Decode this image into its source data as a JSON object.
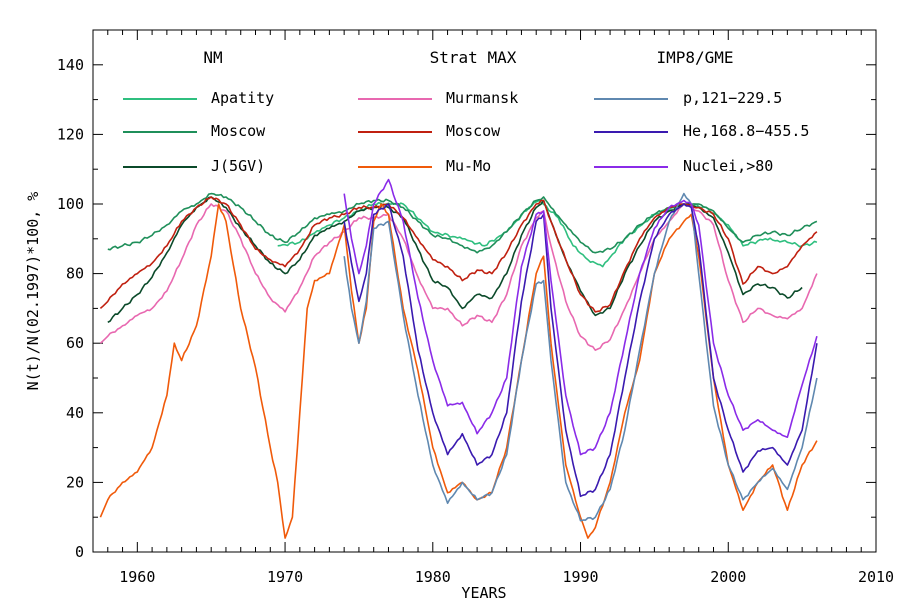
{
  "chart_data": {
    "type": "line",
    "title": "",
    "xlabel": "YEARS",
    "ylabel": "N(t)/N(02.1997)*100, %",
    "xlim": [
      1957,
      2010
    ],
    "ylim": [
      0,
      150
    ],
    "xticks": [
      1960,
      1970,
      1980,
      1990,
      2000,
      2010
    ],
    "yticks": [
      0,
      20,
      40,
      60,
      80,
      100,
      120,
      140
    ],
    "legend_groups": [
      {
        "title": "NM",
        "entries": [
          {
            "name": "Apatity",
            "color": "#2fbf7f"
          },
          {
            "name": "Moscow",
            "color": "#1f8f5a"
          },
          {
            "name": "J(5GV)",
            "color": "#0b4a2a"
          }
        ]
      },
      {
        "title": "Strat MAX",
        "entries": [
          {
            "name": "Murmansk",
            "color": "#e868b0"
          },
          {
            "name": "Moscow",
            "color": "#c02010"
          },
          {
            "name": "Mu-Mo",
            "color": "#f05a0a"
          }
        ]
      },
      {
        "title": "IMP8/GME",
        "entries": [
          {
            "name": "p,121−229.5",
            "color": "#5f88b0"
          },
          {
            "name": "He,168.8−455.5",
            "color": "#3a1ab0"
          },
          {
            "name": "Nuclei,>80",
            "color": "#8a2be8"
          }
        ]
      }
    ],
    "series": [
      {
        "name": "Apatity",
        "color": "#2fbf7f",
        "x": [
          1969.5,
          1971,
          1972.5,
          1974,
          1976,
          1978,
          1980,
          1982,
          1983.5,
          1985,
          1986.5,
          1987.2,
          1988.5,
          1989.5,
          1990.5,
          1991.5,
          1993,
          1995,
          1997,
          1998.5,
          2000,
          2001,
          2002.5,
          2004,
          2005,
          2006
        ],
        "y": [
          88,
          89,
          93,
          96,
          100,
          100,
          92,
          90,
          88,
          92,
          99,
          101,
          96,
          88,
          84,
          82,
          90,
          97,
          100,
          99,
          94,
          88,
          90,
          89,
          88,
          89
        ]
      },
      {
        "name": "Moscow (NM)",
        "color": "#1f8f5a",
        "x": [
          1958,
          1959,
          1960,
          1961,
          1962,
          1963,
          1964,
          1965,
          1966,
          1967,
          1968,
          1969,
          1970,
          1971,
          1972,
          1973,
          1974,
          1975,
          1976,
          1977,
          1978,
          1979,
          1980,
          1981,
          1982,
          1983,
          1984,
          1985,
          1986,
          1987,
          1987.5,
          1988,
          1989,
          1990,
          1991,
          1992,
          1993,
          1994,
          1995,
          1996,
          1997,
          1998,
          1999,
          2000,
          2001,
          2002,
          2003,
          2004,
          2005,
          2006
        ],
        "y": [
          87,
          88,
          89,
          91,
          94,
          98,
          100,
          103,
          102,
          99,
          95,
          91,
          89,
          92,
          96,
          97,
          98,
          100,
          101,
          101,
          99,
          95,
          91,
          90,
          88,
          86,
          88,
          92,
          97,
          101,
          102,
          99,
          94,
          89,
          86,
          87,
          90,
          94,
          97,
          99,
          100,
          100,
          98,
          93,
          89,
          91,
          92,
          91,
          93,
          95
        ]
      },
      {
        "name": "J(5GV)",
        "color": "#0b4a2a",
        "x": [
          1958,
          1959,
          1960,
          1961,
          1962,
          1963,
          1964,
          1965,
          1966,
          1967,
          1968,
          1969,
          1970,
          1971,
          1972,
          1973,
          1974,
          1975,
          1976,
          1977,
          1978,
          1979,
          1980,
          1981,
          1982,
          1983,
          1984,
          1985,
          1986,
          1987,
          1987.5,
          1988,
          1989,
          1990,
          1991,
          1992,
          1993,
          1994,
          1995,
          1996,
          1997,
          1998,
          1999,
          2000,
          2001,
          2002,
          2003,
          2004,
          2005
        ],
        "y": [
          66,
          70,
          74,
          79,
          86,
          94,
          99,
          102,
          99,
          93,
          88,
          83,
          80,
          84,
          91,
          93,
          95,
          98,
          99,
          99,
          96,
          87,
          78,
          76,
          70,
          74,
          73,
          80,
          91,
          99,
          101,
          95,
          84,
          75,
          68,
          70,
          80,
          88,
          95,
          98,
          100,
          99,
          96,
          86,
          74,
          77,
          76,
          73,
          76
        ]
      },
      {
        "name": "Murmansk",
        "color": "#e868b0",
        "x": [
          1957.5,
          1958,
          1959,
          1960,
          1961,
          1962,
          1963,
          1964,
          1965,
          1966,
          1967,
          1968,
          1969,
          1970,
          1971,
          1972,
          1973,
          1974,
          1975,
          1976,
          1977,
          1978,
          1979,
          1980,
          1981,
          1982,
          1983,
          1984,
          1985,
          1986,
          1987,
          1987.5,
          1988,
          1989,
          1990,
          1991,
          1992,
          1993,
          1994,
          1995,
          1996,
          1997,
          1998,
          1999,
          2000,
          2001,
          2002,
          2003,
          2004,
          2005,
          2006
        ],
        "y": [
          60,
          62,
          65,
          68,
          70,
          75,
          84,
          94,
          100,
          98,
          90,
          80,
          73,
          69,
          76,
          85,
          89,
          92,
          96,
          96,
          97,
          90,
          79,
          70,
          70,
          65,
          68,
          66,
          74,
          88,
          96,
          98,
          88,
          72,
          62,
          58,
          61,
          70,
          80,
          90,
          95,
          100,
          98,
          94,
          78,
          66,
          70,
          68,
          67,
          70,
          80
        ]
      },
      {
        "name": "Moscow (Strat)",
        "color": "#c02010",
        "x": [
          1957.5,
          1958,
          1959,
          1960,
          1961,
          1962,
          1963,
          1964,
          1965,
          1966,
          1967,
          1968,
          1969,
          1970,
          1971,
          1972,
          1973,
          1974,
          1975,
          1976,
          1977,
          1978,
          1979,
          1980,
          1981,
          1982,
          1983,
          1984,
          1985,
          1986,
          1987,
          1987.5,
          1988,
          1989,
          1990,
          1991,
          1992,
          1993,
          1994,
          1995,
          1996,
          1997,
          1998,
          1999,
          2000,
          2001,
          2002,
          2003,
          2004,
          2005,
          2006
        ],
        "y": [
          70,
          72,
          77,
          80,
          83,
          88,
          95,
          99,
          102,
          100,
          94,
          87,
          84,
          82,
          87,
          94,
          96,
          97,
          99,
          99,
          100,
          96,
          90,
          84,
          82,
          78,
          81,
          80,
          86,
          94,
          100,
          101,
          95,
          84,
          74,
          69,
          71,
          81,
          90,
          96,
          99,
          100,
          99,
          97,
          90,
          77,
          82,
          80,
          82,
          88,
          92
        ]
      },
      {
        "name": "Mu-Mo",
        "color": "#f05a0a",
        "x": [
          1957.5,
          1958,
          1959,
          1960,
          1961,
          1962,
          1962.5,
          1963,
          1964,
          1965,
          1965.5,
          1966,
          1967,
          1968,
          1969,
          1969.5,
          1970,
          1970.5,
          1971,
          1971.5,
          1972,
          1973,
          1974,
          1974.5,
          1975,
          1975.5,
          1976,
          1976.5,
          1977,
          1978,
          1979,
          1980,
          1981,
          1982,
          1983,
          1984,
          1985,
          1986,
          1987,
          1987.5,
          1988,
          1989,
          1990,
          1990.5,
          1991,
          1992,
          1993,
          1994,
          1995,
          1996,
          1997,
          1997.5,
          1998,
          1999,
          2000,
          2001,
          2002,
          2003,
          2004,
          2005,
          2006
        ],
        "y": [
          10,
          15,
          20,
          23,
          30,
          45,
          60,
          55,
          65,
          85,
          100,
          95,
          70,
          53,
          30,
          20,
          4,
          10,
          40,
          70,
          78,
          80,
          94,
          75,
          60,
          70,
          95,
          100,
          97,
          70,
          52,
          30,
          17,
          20,
          15,
          17,
          30,
          55,
          80,
          85,
          60,
          25,
          10,
          4,
          7,
          20,
          40,
          55,
          80,
          90,
          95,
          97,
          85,
          50,
          25,
          12,
          20,
          25,
          12,
          25,
          32
        ]
      },
      {
        "name": "p,121-229.5",
        "color": "#5f88b0",
        "x": [
          1974,
          1974.5,
          1975,
          1975.5,
          1976,
          1977,
          1978,
          1979,
          1980,
          1981,
          1982,
          1983,
          1984,
          1985,
          1986,
          1987,
          1987.5,
          1988,
          1989,
          1990,
          1991,
          1992,
          1993,
          1994,
          1995,
          1996,
          1997,
          1997.5,
          1998,
          1999,
          2000,
          2001,
          2002,
          2003,
          2004,
          2005,
          2006
        ],
        "y": [
          85,
          70,
          60,
          72,
          93,
          95,
          68,
          45,
          25,
          14,
          20,
          15,
          17,
          28,
          55,
          77,
          78,
          55,
          20,
          9,
          10,
          18,
          35,
          58,
          80,
          95,
          103,
          100,
          80,
          42,
          25,
          15,
          20,
          24,
          18,
          30,
          50
        ]
      },
      {
        "name": "He,168.8-455.5",
        "color": "#3a1ab0",
        "x": [
          1974,
          1974.5,
          1975,
          1975.5,
          1976,
          1977,
          1978,
          1979,
          1980,
          1981,
          1982,
          1983,
          1984,
          1985,
          1986,
          1987,
          1987.5,
          1988,
          1989,
          1990,
          1991,
          1992,
          1993,
          1994,
          1995,
          1996,
          1997,
          1997.5,
          1998,
          1999,
          2000,
          2001,
          2002,
          2003,
          2004,
          2005,
          2006
        ],
        "y": [
          95,
          83,
          72,
          80,
          97,
          100,
          85,
          58,
          40,
          28,
          34,
          25,
          28,
          40,
          72,
          95,
          97,
          70,
          35,
          16,
          18,
          28,
          50,
          72,
          90,
          97,
          100,
          99,
          88,
          50,
          35,
          23,
          29,
          30,
          25,
          35,
          60
        ]
      },
      {
        "name": "Nuclei,>80",
        "color": "#8a2be8",
        "x": [
          1974,
          1974.5,
          1975,
          1975.5,
          1976,
          1977,
          1978,
          1979,
          1980,
          1981,
          1982,
          1983,
          1984,
          1985,
          1986,
          1987,
          1987.5,
          1988,
          1989,
          1990,
          1991,
          1992,
          1993,
          1994,
          1995,
          1996,
          1997,
          1997.5,
          1998,
          1999,
          2000,
          2001,
          2002,
          2003,
          2004,
          2005,
          2006
        ],
        "y": [
          103,
          90,
          80,
          88,
          100,
          107,
          95,
          73,
          55,
          42,
          43,
          34,
          40,
          50,
          82,
          97,
          98,
          78,
          45,
          28,
          30,
          40,
          60,
          80,
          93,
          99,
          101,
          100,
          94,
          60,
          45,
          35,
          38,
          35,
          33,
          48,
          62
        ]
      }
    ]
  }
}
